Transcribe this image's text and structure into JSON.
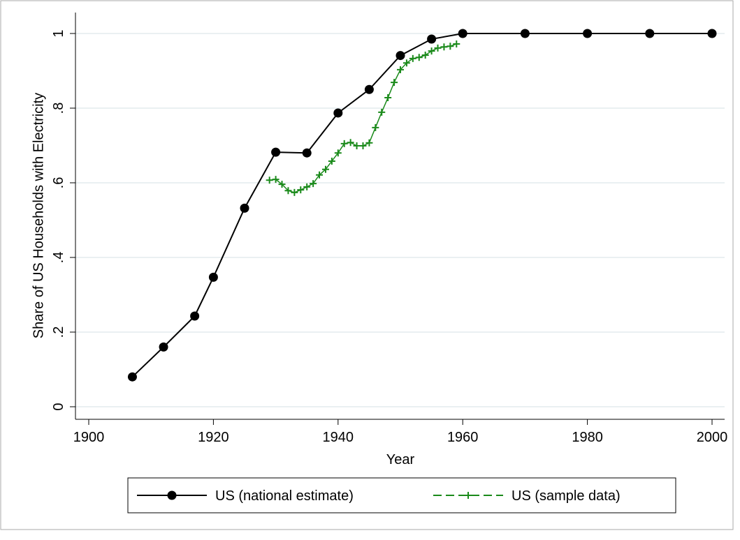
{
  "chart_data": {
    "type": "line",
    "xlabel": "Year",
    "ylabel": "Share of US Households with Electricity",
    "xlim": [
      1900,
      2000
    ],
    "xticks": [
      1900,
      1920,
      1940,
      1960,
      1980,
      2000
    ],
    "ylim": [
      0,
      1
    ],
    "yticks": [
      0,
      {
        "value": 0.2,
        "label": ".2"
      },
      {
        "value": 0.4,
        "label": ".4"
      },
      {
        "value": 0.6,
        "label": ".6"
      },
      {
        "value": 0.8,
        "label": ".8"
      },
      1
    ],
    "grid": true,
    "legend": "bottom",
    "series": [
      {
        "name": "US (national estimate)",
        "color": "#000000",
        "marker": "circle",
        "x": [
          1907,
          1912,
          1917,
          1920,
          1925,
          1930,
          1935,
          1940,
          1945,
          1950,
          1955,
          1960,
          1970,
          1980,
          1990,
          2000
        ],
        "values": [
          0.08,
          0.16,
          0.243,
          0.347,
          0.532,
          0.682,
          0.68,
          0.787,
          0.85,
          0.941,
          0.985,
          1,
          1,
          1,
          1,
          1
        ]
      },
      {
        "name": "US (sample data)",
        "color": "#1a8a1a",
        "marker": "plus",
        "x": [
          1929,
          1930,
          1931,
          1932,
          1933,
          1934,
          1935,
          1936,
          1937,
          1938,
          1939,
          1940,
          1941,
          1942,
          1943,
          1944,
          1945,
          1946,
          1947,
          1948,
          1949,
          1950,
          1951,
          1952,
          1953,
          1954,
          1955,
          1956,
          1957,
          1958,
          1959
        ],
        "values": [
          0.607,
          0.609,
          0.596,
          0.579,
          0.574,
          0.581,
          0.589,
          0.598,
          0.621,
          0.636,
          0.658,
          0.68,
          0.705,
          0.708,
          0.699,
          0.699,
          0.707,
          0.748,
          0.789,
          0.828,
          0.869,
          0.903,
          0.921,
          0.933,
          0.936,
          0.942,
          0.953,
          0.961,
          0.964,
          0.966,
          0.972
        ]
      }
    ]
  }
}
